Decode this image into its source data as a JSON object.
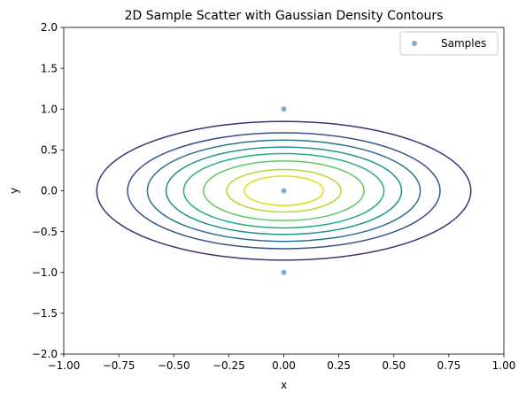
{
  "chart_data": {
    "type": "scatter",
    "title": "2D Sample Scatter with Gaussian Density Contours",
    "xlabel": "x",
    "ylabel": "y",
    "xlim": [
      -1.0,
      1.0
    ],
    "ylim": [
      -2.0,
      2.0
    ],
    "x_ticks": [
      "−1.00",
      "−0.75",
      "−0.50",
      "−0.25",
      "0.00",
      "0.25",
      "0.50",
      "0.75",
      "1.00"
    ],
    "x_tick_values": [
      -1.0,
      -0.75,
      -0.5,
      -0.25,
      0.0,
      0.25,
      0.5,
      0.75,
      1.0
    ],
    "y_ticks": [
      "−2.0",
      "−1.5",
      "−1.0",
      "−0.5",
      "0.0",
      "0.5",
      "1.0",
      "1.5",
      "2.0"
    ],
    "y_tick_values": [
      -2.0,
      -1.5,
      -1.0,
      -0.5,
      0.0,
      0.5,
      1.0,
      1.5,
      2.0
    ],
    "grid": false,
    "legend": {
      "placement": "top-right",
      "entries": [
        "Samples"
      ]
    },
    "series": [
      {
        "name": "Samples",
        "color": "#1f77b4",
        "points": [
          {
            "x": 0.0,
            "y": 1.0
          },
          {
            "x": 0.0,
            "y": 0.0
          },
          {
            "x": 0.0,
            "y": -1.0
          }
        ]
      }
    ],
    "contours": {
      "center": [
        0.0,
        0.0
      ],
      "levels": [
        {
          "rx": 0.85,
          "ry": 0.85,
          "color": "#472c7a"
        },
        {
          "rx": 0.71,
          "ry": 0.71,
          "color": "#3b518b"
        },
        {
          "rx": 0.62,
          "ry": 0.62,
          "color": "#2c718e"
        },
        {
          "rx": 0.535,
          "ry": 0.535,
          "color": "#21908d"
        },
        {
          "rx": 0.455,
          "ry": 0.455,
          "color": "#27ad81"
        },
        {
          "rx": 0.365,
          "ry": 0.365,
          "color": "#5cc863"
        },
        {
          "rx": 0.26,
          "ry": 0.26,
          "color": "#aadc32"
        },
        {
          "rx": 0.18,
          "ry": 0.18,
          "color": "#d8e219"
        }
      ]
    }
  }
}
